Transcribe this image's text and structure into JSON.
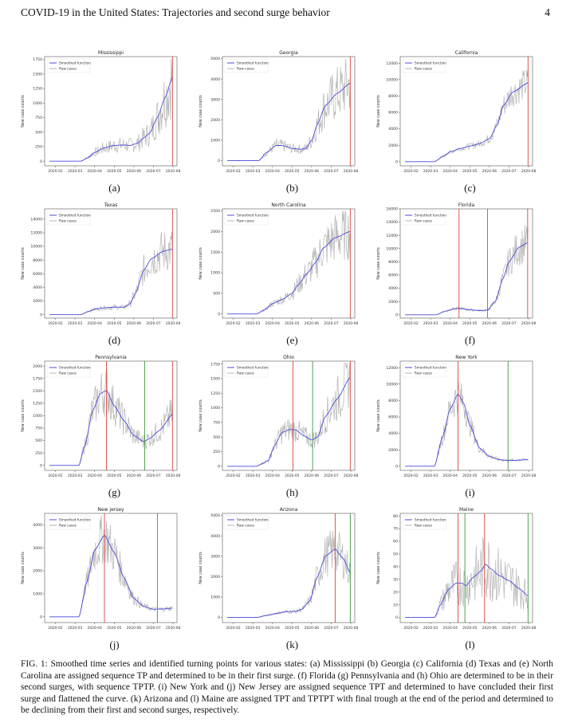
{
  "header": {
    "title": "COVID-19 in the United States: Trajectories and second surge behavior",
    "page_number": "4"
  },
  "caption": "FIG. 1: Smoothed time series and identified turning points for various states: (a) Mississippi (b) Georgia (c) California (d) Texas and (e) North Carolina are assigned sequence TP and determined to be in their first surge. (f) Florida (g) Pennsylvania and (h) Ohio are determined to be in their second surges, with sequence TPTP. (i) New York and (j) New Jersey are assigned sequence TPT and determined to have concluded their first surge and flattened the curve. (k) Arizona and (l) Maine are assigned TPT and TPTPT with final trough at the end of the period and determined to be declining from their first and second surges, respectively.",
  "colors": {
    "smoothed": "#4b4bdc",
    "raw": "#b4b4b4",
    "peak_line": "#e0443c",
    "trough_line": "#3c9a3c"
  },
  "chart_data": [
    {
      "type": "line",
      "label": "(a)",
      "title": "Mississippi",
      "ylabel": "New case counts",
      "xticks": [
        "2020-02",
        "2020-03",
        "2020-04",
        "2020-05",
        "2020-06",
        "2020-07",
        "2020-08"
      ],
      "legend": [
        "Smoothed function",
        "Raw cases"
      ],
      "legend_position": "top-left",
      "ylim": [
        -80,
        1800
      ],
      "yticks": [
        0,
        250,
        500,
        750,
        1000,
        1250,
        1500,
        1750
      ],
      "raw_noise_fraction": 0.35,
      "smoothed": [
        [
          0.7,
          0
        ],
        [
          2.3,
          0
        ],
        [
          2.6,
          50
        ],
        [
          3,
          150
        ],
        [
          3.5,
          230
        ],
        [
          4,
          270
        ],
        [
          4.5,
          280
        ],
        [
          4.8,
          270
        ],
        [
          5.2,
          310
        ],
        [
          5.5,
          400
        ],
        [
          5.8,
          480
        ],
        [
          6.2,
          750
        ],
        [
          6.6,
          1100
        ],
        [
          6.97,
          1450
        ]
      ],
      "vlines": [
        {
          "x": 6.97,
          "kind": "peak"
        }
      ]
    },
    {
      "type": "line",
      "label": "(b)",
      "title": "Georgia",
      "ylabel": "New case counts",
      "xticks": [
        "2020-02",
        "2020-03",
        "2020-04",
        "2020-05",
        "2020-06",
        "2020-07",
        "2020-08"
      ],
      "legend": [
        "Smoothed function",
        "Raw cases"
      ],
      "legend_position": "top-left",
      "ylim": [
        -250,
        5100
      ],
      "yticks": [
        0,
        1000,
        2000,
        3000,
        4000,
        5000
      ],
      "raw_noise_fraction": 0.3,
      "smoothed": [
        [
          0.7,
          0
        ],
        [
          2.3,
          0
        ],
        [
          2.7,
          400
        ],
        [
          3.2,
          750
        ],
        [
          3.5,
          740
        ],
        [
          4,
          600
        ],
        [
          4.5,
          560
        ],
        [
          4.7,
          600
        ],
        [
          5,
          1000
        ],
        [
          5.3,
          1800
        ],
        [
          5.7,
          2700
        ],
        [
          6.3,
          3300
        ],
        [
          6.97,
          3800
        ]
      ],
      "vlines": [
        {
          "x": 6.97,
          "kind": "peak"
        }
      ]
    },
    {
      "type": "line",
      "label": "(c)",
      "title": "California",
      "ylabel": "New case counts",
      "xticks": [
        "2020-02",
        "2020-03",
        "2020-04",
        "2020-05",
        "2020-06",
        "2020-07",
        "2020-08"
      ],
      "legend": [
        "Smoothed function",
        "Raw cases"
      ],
      "legend_position": "top-left",
      "ylim": [
        -500,
        12800
      ],
      "yticks": [
        0,
        2000,
        4000,
        6000,
        8000,
        10000,
        12000
      ],
      "raw_noise_fraction": 0.15,
      "smoothed": [
        [
          0.7,
          0
        ],
        [
          2.2,
          0
        ],
        [
          2.6,
          600
        ],
        [
          3,
          1200
        ],
        [
          3.5,
          1600
        ],
        [
          4,
          1900
        ],
        [
          4.5,
          2200
        ],
        [
          5,
          2800
        ],
        [
          5.4,
          4500
        ],
        [
          5.7,
          6800
        ],
        [
          6.2,
          8500
        ],
        [
          6.97,
          9600
        ]
      ],
      "vlines": [
        {
          "x": 6.97,
          "kind": "peak"
        }
      ]
    },
    {
      "type": "line",
      "label": "(d)",
      "title": "Texas",
      "ylabel": "New case counts",
      "xticks": [
        "2020-02",
        "2020-03",
        "2020-04",
        "2020-05",
        "2020-06",
        "2020-07",
        "2020-08"
      ],
      "legend": [
        "Smoothed function",
        "Raw cases"
      ],
      "legend_position": "top-left",
      "ylim": [
        -500,
        15500
      ],
      "yticks": [
        0,
        2000,
        4000,
        6000,
        8000,
        10000,
        12000,
        14000
      ],
      "raw_noise_fraction": 0.25,
      "smoothed": [
        [
          0.7,
          0
        ],
        [
          2.3,
          0
        ],
        [
          2.7,
          500
        ],
        [
          3,
          800
        ],
        [
          3.5,
          1000
        ],
        [
          4,
          1100
        ],
        [
          4.5,
          1100
        ],
        [
          4.8,
          1600
        ],
        [
          5.1,
          3200
        ],
        [
          5.5,
          6500
        ],
        [
          5.9,
          8200
        ],
        [
          6.5,
          9300
        ],
        [
          6.97,
          9600
        ]
      ],
      "vlines": [
        {
          "x": 6.97,
          "kind": "peak"
        }
      ]
    },
    {
      "type": "line",
      "label": "(e)",
      "title": "North Carolina",
      "ylabel": "New case counts",
      "xticks": [
        "2020-02",
        "2020-03",
        "2020-04",
        "2020-05",
        "2020-06",
        "2020-07",
        "2020-08"
      ],
      "legend": [
        "Smoothed function",
        "Raw cases"
      ],
      "legend_position": "top-left",
      "ylim": [
        -100,
        2550
      ],
      "yticks": [
        0,
        500,
        1000,
        1500,
        2000,
        2500
      ],
      "raw_noise_fraction": 0.25,
      "smoothed": [
        [
          0.7,
          0
        ],
        [
          2.2,
          0
        ],
        [
          2.6,
          100
        ],
        [
          3,
          250
        ],
        [
          3.5,
          350
        ],
        [
          4,
          500
        ],
        [
          4.3,
          700
        ],
        [
          4.8,
          1000
        ],
        [
          5.2,
          1250
        ],
        [
          5.6,
          1600
        ],
        [
          6.2,
          1850
        ],
        [
          6.97,
          2000
        ]
      ],
      "vlines": [
        {
          "x": 6.97,
          "kind": "peak"
        }
      ]
    },
    {
      "type": "line",
      "label": "(f)",
      "title": "Florida",
      "ylabel": "New case counts",
      "xticks": [
        "2020-02",
        "2020-03",
        "2020-04",
        "2020-05",
        "2020-06",
        "2020-07",
        "2020-08"
      ],
      "legend": [
        "Smoothed function",
        "Raw cases"
      ],
      "legend_position": "top-left",
      "ylim": [
        -500,
        16000
      ],
      "yticks": [
        0,
        2000,
        4000,
        6000,
        8000,
        10000,
        12000,
        14000,
        16000
      ],
      "raw_noise_fraction": 0.2,
      "smoothed": [
        [
          0.7,
          0
        ],
        [
          2.3,
          0
        ],
        [
          2.7,
          500
        ],
        [
          3.2,
          900
        ],
        [
          3.5,
          950
        ],
        [
          4,
          750
        ],
        [
          4.5,
          650
        ],
        [
          4.9,
          700
        ],
        [
          5.3,
          2000
        ],
        [
          5.7,
          5500
        ],
        [
          6,
          8000
        ],
        [
          6.5,
          10200
        ],
        [
          6.97,
          10900
        ]
      ],
      "vlines": [
        {
          "x": 3.45,
          "kind": "peak"
        },
        {
          "x": 4.9,
          "kind": "trough"
        },
        {
          "x": 6.95,
          "kind": "peak"
        }
      ]
    },
    {
      "type": "line",
      "label": "(g)",
      "title": "Pennsylvania",
      "ylabel": "New case counts",
      "xticks": [
        "2020-02",
        "2020-03",
        "2020-04",
        "2020-05",
        "2020-06",
        "2020-07",
        "2020-08"
      ],
      "legend": [
        "Smoothed function",
        "Raw cases"
      ],
      "legend_position": "top-left",
      "ylim": [
        -100,
        2100
      ],
      "yticks": [
        0,
        250,
        500,
        750,
        1000,
        1250,
        1500,
        1750,
        2000
      ],
      "raw_noise_fraction": 0.25,
      "smoothed": [
        [
          0.7,
          0
        ],
        [
          2.2,
          0
        ],
        [
          2.5,
          400
        ],
        [
          2.9,
          1100
        ],
        [
          3.3,
          1450
        ],
        [
          3.6,
          1510
        ],
        [
          4,
          1200
        ],
        [
          4.5,
          900
        ],
        [
          5,
          600
        ],
        [
          5.5,
          480
        ],
        [
          5.8,
          540
        ],
        [
          6.3,
          700
        ],
        [
          6.97,
          1030
        ]
      ],
      "vlines": [
        {
          "x": 3.6,
          "kind": "peak"
        },
        {
          "x": 5.55,
          "kind": "trough"
        },
        {
          "x": 6.97,
          "kind": "peak"
        }
      ]
    },
    {
      "type": "line",
      "label": "(h)",
      "title": "Ohio",
      "ylabel": "New case counts",
      "xticks": [
        "2020-02",
        "2020-03",
        "2020-04",
        "2020-05",
        "2020-06",
        "2020-07",
        "2020-08"
      ],
      "legend": [
        "Smoothed function",
        "Raw cases"
      ],
      "legend_position": "top-left",
      "ylim": [
        -70,
        1800
      ],
      "yticks": [
        0,
        250,
        500,
        750,
        1000,
        1250,
        1500,
        1750
      ],
      "raw_noise_fraction": 0.25,
      "smoothed": [
        [
          0.7,
          0
        ],
        [
          2.2,
          0
        ],
        [
          2.5,
          50
        ],
        [
          2.8,
          100
        ],
        [
          3.1,
          350
        ],
        [
          3.5,
          580
        ],
        [
          3.9,
          630
        ],
        [
          4.2,
          620
        ],
        [
          4.6,
          520
        ],
        [
          5,
          450
        ],
        [
          5.3,
          500
        ],
        [
          5.7,
          850
        ],
        [
          6.3,
          1150
        ],
        [
          6.97,
          1520
        ]
      ],
      "vlines": [
        {
          "x": 4.05,
          "kind": "peak"
        },
        {
          "x": 5.05,
          "kind": "trough"
        },
        {
          "x": 6.97,
          "kind": "peak"
        }
      ]
    },
    {
      "type": "line",
      "label": "(i)",
      "title": "New York",
      "ylabel": "New case counts",
      "xticks": [
        "2020-02",
        "2020-03",
        "2020-04",
        "2020-05",
        "2020-06",
        "2020-07",
        "2020-08"
      ],
      "legend": [
        "Smoothed function",
        "Raw cases"
      ],
      "legend_position": "top-left",
      "ylim": [
        -500,
        12800
      ],
      "yticks": [
        0,
        2000,
        4000,
        6000,
        8000,
        10000,
        12000
      ],
      "raw_noise_fraction": 0.2,
      "smoothed": [
        [
          0.7,
          0
        ],
        [
          2.2,
          0
        ],
        [
          2.6,
          3500
        ],
        [
          3,
          7000
        ],
        [
          3.4,
          8800
        ],
        [
          3.7,
          7600
        ],
        [
          4,
          5000
        ],
        [
          4.5,
          2200
        ],
        [
          5,
          1200
        ],
        [
          5.5,
          800
        ],
        [
          6,
          700
        ],
        [
          6.97,
          800
        ]
      ],
      "vlines": [
        {
          "x": 3.4,
          "kind": "peak"
        },
        {
          "x": 5.95,
          "kind": "trough"
        }
      ]
    },
    {
      "type": "line",
      "label": "(j)",
      "title": "New jersey",
      "ylabel": "New case counts",
      "xticks": [
        "2020-02",
        "2020-03",
        "2020-04",
        "2020-05",
        "2020-06",
        "2020-07",
        "2020-08"
      ],
      "legend": [
        "Smoothed function",
        "Raw cases"
      ],
      "legend_position": "top-left",
      "ylim": [
        -250,
        4500
      ],
      "yticks": [
        0,
        1000,
        2000,
        3000,
        4000
      ],
      "raw_noise_fraction": 0.25,
      "smoothed": [
        [
          0.7,
          0
        ],
        [
          2.2,
          0
        ],
        [
          2.6,
          1500
        ],
        [
          3,
          2900
        ],
        [
          3.5,
          3550
        ],
        [
          4,
          2800
        ],
        [
          4.5,
          1700
        ],
        [
          5,
          800
        ],
        [
          5.5,
          450
        ],
        [
          6,
          330
        ],
        [
          6.5,
          340
        ],
        [
          6.97,
          380
        ]
      ],
      "vlines": [
        {
          "x": 3.5,
          "kind": "peak"
        },
        {
          "x": 6.2,
          "kind": "trough"
        }
      ]
    },
    {
      "type": "line",
      "label": "(k)",
      "title": "Arizona",
      "ylabel": "New case counts",
      "xticks": [
        "2020-02",
        "2020-03",
        "2020-04",
        "2020-05",
        "2020-06",
        "2020-07",
        "2020-08"
      ],
      "legend": [
        "Smoothed function",
        "Raw cases"
      ],
      "legend_position": "top-left",
      "ylim": [
        -250,
        5100
      ],
      "yticks": [
        0,
        1000,
        2000,
        3000,
        4000,
        5000
      ],
      "raw_noise_fraction": 0.25,
      "smoothed": [
        [
          0.7,
          0
        ],
        [
          2.2,
          0
        ],
        [
          2.7,
          100
        ],
        [
          3.2,
          200
        ],
        [
          3.7,
          280
        ],
        [
          4.2,
          300
        ],
        [
          4.5,
          400
        ],
        [
          4.9,
          800
        ],
        [
          5.3,
          2000
        ],
        [
          5.7,
          3000
        ],
        [
          6.2,
          3350
        ],
        [
          6.6,
          2900
        ],
        [
          6.97,
          2200
        ]
      ],
      "vlines": [
        {
          "x": 6.2,
          "kind": "peak"
        },
        {
          "x": 6.97,
          "kind": "trough"
        }
      ]
    },
    {
      "type": "line",
      "label": "(l)",
      "title": "Maine",
      "ylabel": "New case counts",
      "xticks": [
        "2020-02",
        "2020-03",
        "2020-04",
        "2020-05",
        "2020-06",
        "2020-07",
        "2020-08"
      ],
      "legend": [
        "Smoothed function",
        "Raw cases"
      ],
      "legend_position": "top-left",
      "ylim": [
        -4,
        82
      ],
      "yticks": [
        0,
        10,
        20,
        30,
        40,
        50,
        60,
        70,
        80
      ],
      "raw_noise_fraction": 0.5,
      "smoothed": [
        [
          0.7,
          0
        ],
        [
          2.2,
          0
        ],
        [
          2.5,
          10
        ],
        [
          2.9,
          22
        ],
        [
          3.3,
          27
        ],
        [
          3.6,
          27
        ],
        [
          3.8,
          25
        ],
        [
          4.2,
          32
        ],
        [
          4.6,
          37
        ],
        [
          4.8,
          42
        ],
        [
          5.1,
          38
        ],
        [
          5.5,
          33
        ],
        [
          6,
          29
        ],
        [
          6.5,
          23
        ],
        [
          6.97,
          17
        ]
      ],
      "vlines": [
        {
          "x": 3.4,
          "kind": "peak"
        },
        {
          "x": 3.75,
          "kind": "trough"
        },
        {
          "x": 4.75,
          "kind": "peak"
        },
        {
          "x": 6.97,
          "kind": "trough"
        }
      ]
    }
  ]
}
